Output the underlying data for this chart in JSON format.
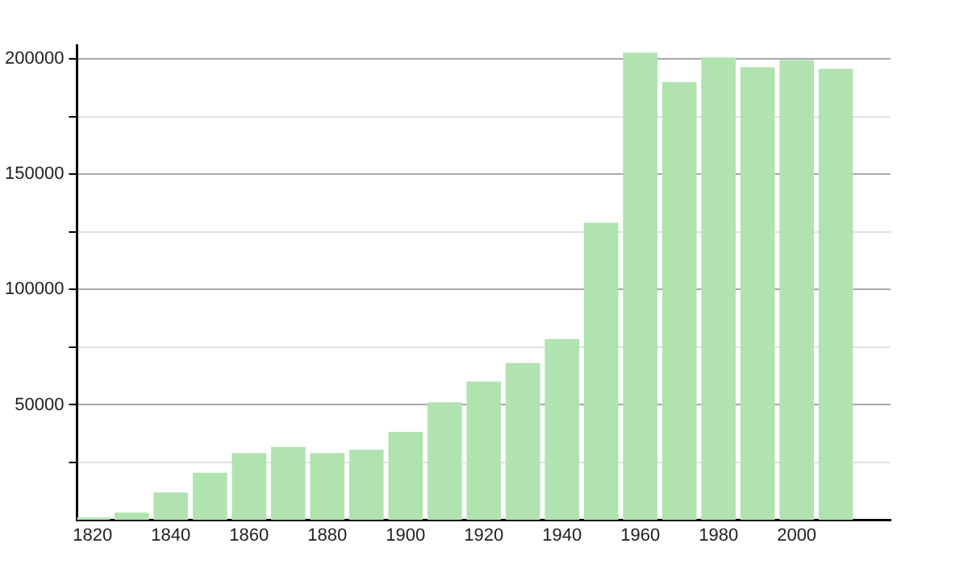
{
  "chart_data": {
    "type": "bar",
    "x": [
      1820,
      1830,
      1840,
      1850,
      1860,
      1870,
      1880,
      1890,
      1900,
      1910,
      1920,
      1930,
      1940,
      1950,
      1960,
      1970,
      1980,
      1990,
      2000,
      2010
    ],
    "values": [
      1200,
      3300,
      12000,
      20600,
      29100,
      31700,
      29100,
      30500,
      38300,
      51100,
      60100,
      68200,
      78600,
      129000,
      202800,
      190000,
      200700,
      196400,
      199500,
      195700
    ],
    "color": "#b0e3b0",
    "xlim": [
      1816,
      2024
    ],
    "xticks": [
      1820,
      1840,
      1860,
      1880,
      1900,
      1920,
      1940,
      1960,
      1980,
      2000
    ],
    "ylim": [
      0,
      206000
    ],
    "yticks": [
      {
        "value": 25000,
        "label": null
      },
      50000,
      {
        "value": 75000,
        "label": null
      },
      100000,
      {
        "value": 125000,
        "label": null
      },
      150000,
      {
        "value": 175000,
        "label": null
      },
      200000
    ],
    "grid": "y",
    "legend": false
  }
}
